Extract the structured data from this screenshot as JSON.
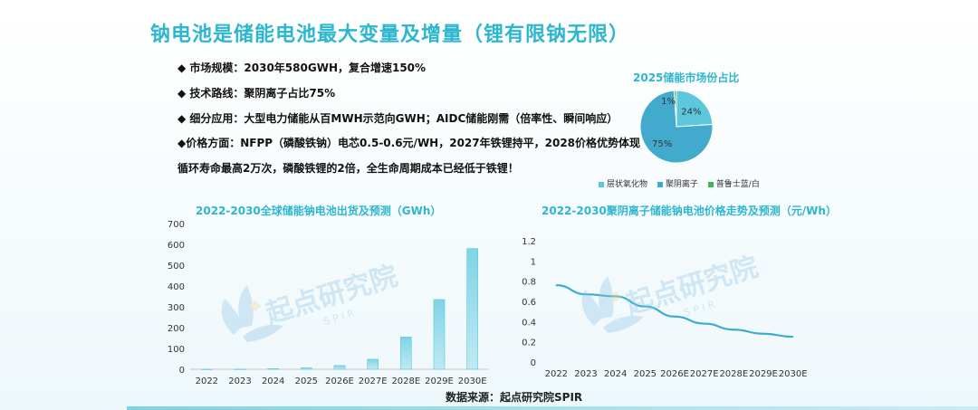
{
  "title": "钠电池是储能电池最大变量及增量（锂有限钠无限）",
  "bullets": [
    "◆    市场规模：2030年580GWH，复合增速150%",
    "◆ 技术路线：聚阴离子占比75%",
    "◆   细分应用：大型电力储能从百MWH示范向GWH；AIDC储能刚需（倍率性、瞬间响应）",
    "◆价格方面：NFPP（磷酸铁钠）电芯0.5-0.6元/WH，2027年铁锂持平，2028价格优势体现",
    "循环寿命最高2万次，磷酸铁锂的2倍，全生命周期成本已经低于铁锂！"
  ],
  "watermark": {
    "main": "起点研究院",
    "sub": "S P I R"
  },
  "source": "数据来源：起点研究院SPIR",
  "colors": {
    "accent": "#2cb7cf",
    "pie_layered": "#5cc7dd",
    "pie_poly": "#42aacd",
    "pie_prussian": "#3db85a"
  },
  "chart_data": [
    {
      "type": "pie",
      "title": "2025储能市场份占比",
      "slices": [
        {
          "name": "层状氧化物",
          "value": 24,
          "label": "24%"
        },
        {
          "name": "聚阴离子",
          "value": 75,
          "label": "75%"
        },
        {
          "name": "普鲁士蓝/白",
          "value": 1,
          "label": "1%"
        }
      ]
    },
    {
      "type": "bar",
      "title": "2022-2030全球储能钠电池出货及预测（GWh）",
      "categories": [
        "2022",
        "2023",
        "2024",
        "2025",
        "2026E",
        "2027E",
        "2028E",
        "2029E",
        "2030E"
      ],
      "values": [
        0.1,
        0.5,
        3,
        7,
        18,
        48,
        155,
        335,
        580
      ],
      "ylim": [
        0,
        700
      ],
      "yticks": [
        0,
        100,
        200,
        300,
        400,
        500,
        600,
        700
      ],
      "grid": false
    },
    {
      "type": "line",
      "title": "2022-2030聚阴离子储能钠电池价格走势及预测（元/Wh）",
      "categories": [
        "2022",
        "2023",
        "2024",
        "2025",
        "2026E",
        "2027E",
        "2028E",
        "2029E",
        "2030E"
      ],
      "values": [
        0.76,
        0.67,
        0.65,
        0.55,
        0.45,
        0.38,
        0.32,
        0.28,
        0.25
      ],
      "ylim": [
        0,
        1.2
      ],
      "yticks": [
        "0",
        "0.2",
        "0.4",
        "0.6",
        "0.8",
        "1",
        "1.2"
      ],
      "grid": false
    }
  ]
}
